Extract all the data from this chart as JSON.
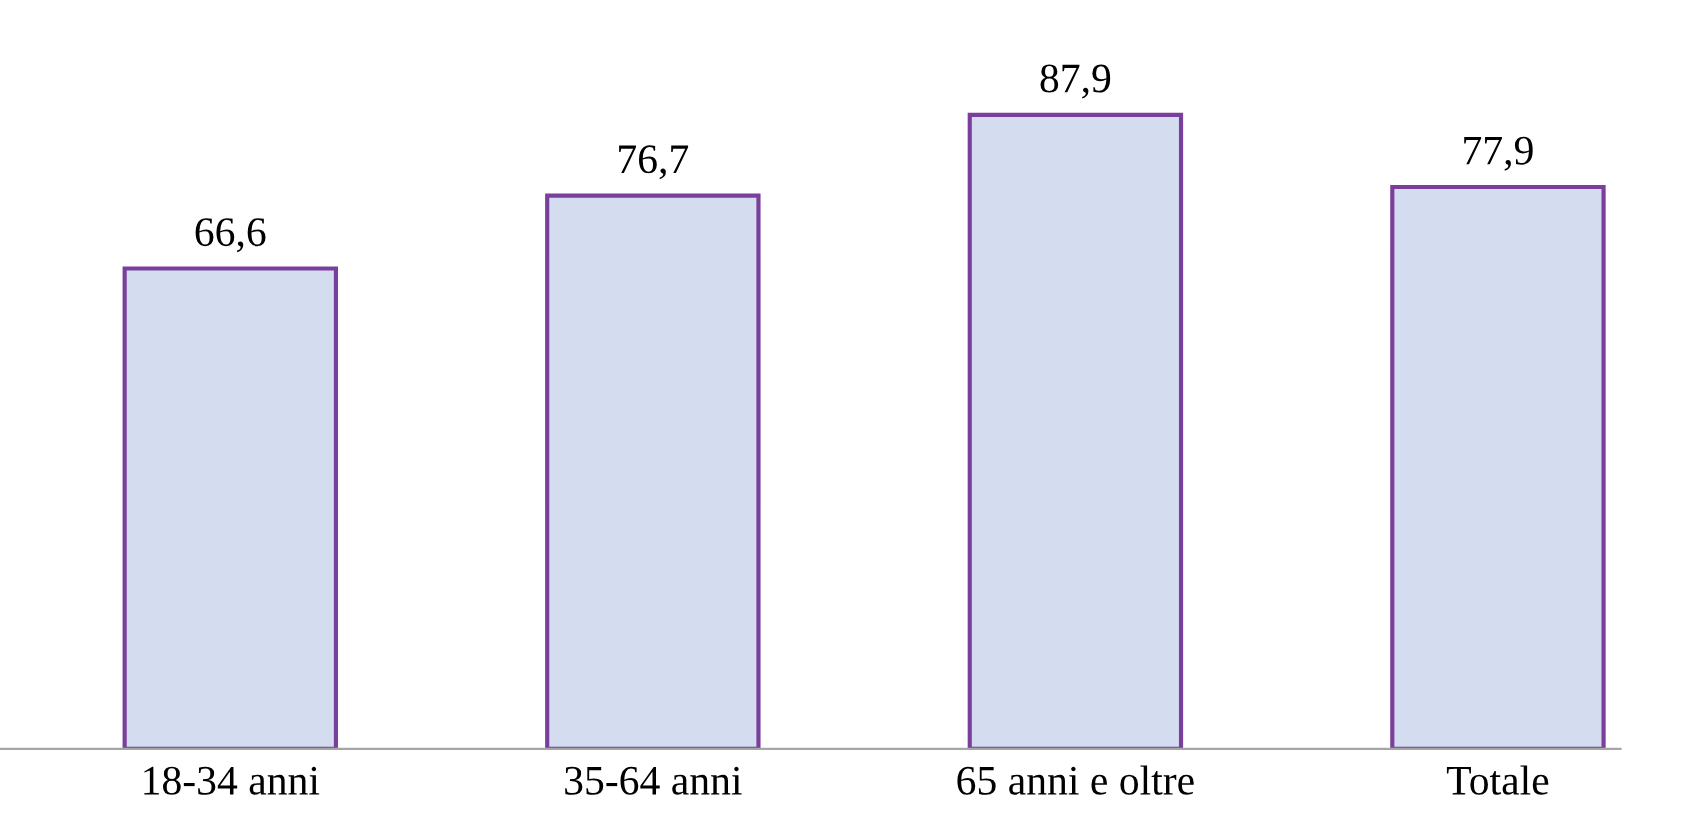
{
  "chart_data": {
    "type": "bar",
    "categories": [
      "18-34 anni",
      "35-64 anni",
      "65 anni e oltre",
      "Totale"
    ],
    "values": [
      66.6,
      76.7,
      87.9,
      77.9
    ],
    "value_labels": [
      "66,6",
      "76,7",
      "87,9",
      "77,9"
    ],
    "color": "#d3ddef",
    "grid": false,
    "legend": false
  }
}
